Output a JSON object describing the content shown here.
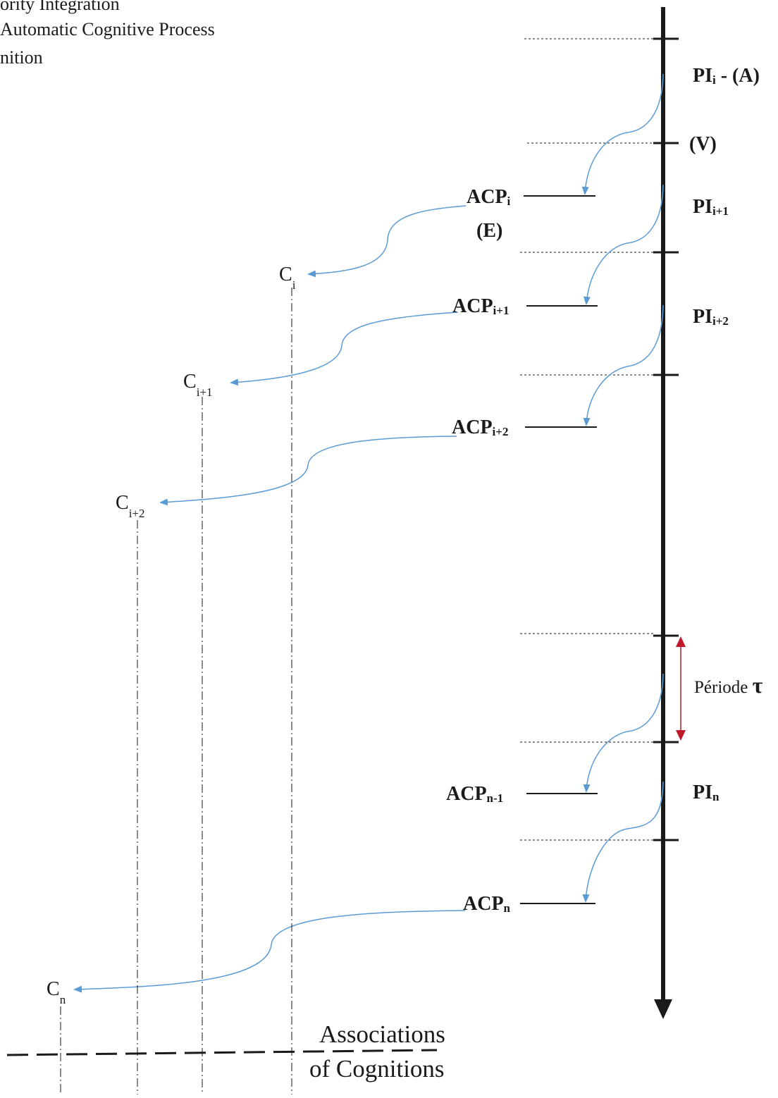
{
  "legend": {
    "line1": "ority Integration",
    "line2": "Automatic Cognitive Process",
    "line3": "nition"
  },
  "timeline": {
    "pi_i": {
      "base": "PI",
      "sub": "i",
      "suffix": " - (A)"
    },
    "v_label": "(V)",
    "pi_i1": {
      "base": "PI",
      "sub": "i+1"
    },
    "pi_i2": {
      "base": "PI",
      "sub": "i+2"
    },
    "pi_n": {
      "base": "PI",
      "sub": "n"
    },
    "period": {
      "text": "Période ",
      "symbol": "τ"
    }
  },
  "processes": {
    "acp_i": {
      "base": "ACP",
      "sub": "i"
    },
    "e_label": "(E)",
    "acp_i1": {
      "base": "ACP",
      "sub": "i+1"
    },
    "acp_i2": {
      "base": "ACP",
      "sub": "i+2"
    },
    "acp_n1": {
      "base": "ACP",
      "sub": "n-1"
    },
    "acp_n": {
      "base": "ACP",
      "sub": "n"
    }
  },
  "cognitions": {
    "c_i": {
      "base": "C",
      "sub": "i"
    },
    "c_i1": {
      "base": "C",
      "sub": "i+1"
    },
    "c_i2": {
      "base": "C",
      "sub": "i+2"
    },
    "c_n": {
      "base": "C",
      "sub": "n"
    }
  },
  "associations": {
    "line1": "Associations",
    "line2": "of Cognitions"
  },
  "colors": {
    "axis": "#1a1a1a",
    "flow_arrow": "#5b9bd5",
    "period_arrow": "#c0192b",
    "text": "#1a1a1a"
  }
}
